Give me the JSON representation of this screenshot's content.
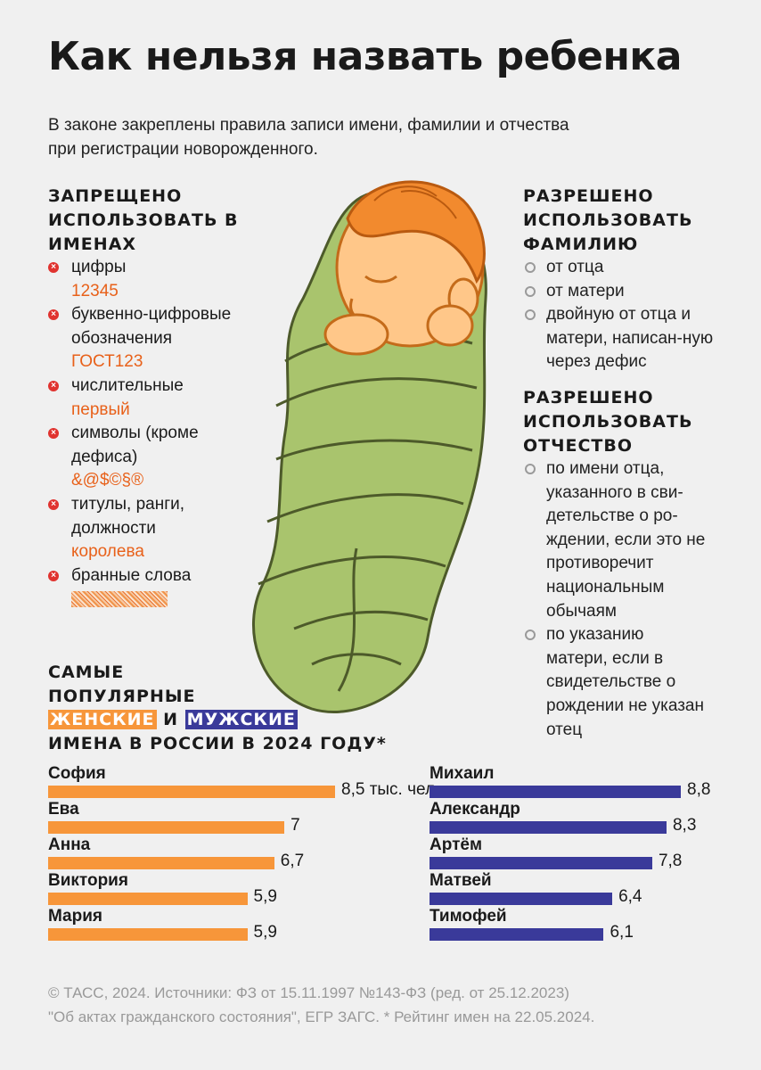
{
  "title": "Как нельзя назвать ребенка",
  "subtitle": "В законе закреплены правила записи имени, фамилии и отчества при регистрации новорожденного.",
  "forbidden": {
    "heading": "Запрещено использовать в именах",
    "items": [
      {
        "label": "цифры",
        "example": "12345"
      },
      {
        "label": "буквенно-цифровые обозначения",
        "example": "ГОСТ123"
      },
      {
        "label": "числительные",
        "example": "первый"
      },
      {
        "label": "символы (кроме дефиса)",
        "example": "&@$©§®"
      },
      {
        "label": "титулы, ранги, должности",
        "example": "королева"
      },
      {
        "label": "бранные слова",
        "example": ""
      }
    ]
  },
  "surname": {
    "heading": "Разрешено использовать фамилию",
    "items": [
      "от отца",
      "от матери",
      "двойную от отца и матери, написан-ную через дефис"
    ]
  },
  "patronymic": {
    "heading": "Разрешено использовать отчество",
    "items": [
      "по имени отца, указанного в сви-детельстве о ро-ждении, если это не противоречит национальным обычаям",
      "по указанию матери, если в свидетельстве о рождении не указан отец"
    ]
  },
  "popular": {
    "heading_line1": "Самые",
    "heading_line2": "популярные",
    "female_tag": "женские",
    "and": "и",
    "male_tag": "мужские",
    "heading_line4": "имена в России в 2024 году*"
  },
  "chart_data": [
    {
      "type": "bar",
      "series_name": "женские",
      "color": "#f7963a",
      "categories": [
        "София",
        "Ева",
        "Анна",
        "Виктория",
        "Мария"
      ],
      "values": [
        8.5,
        7,
        6.7,
        5.9,
        5.9
      ],
      "value_labels": [
        "8,5 тыс. чел.",
        "7",
        "6,7",
        "5,9",
        "5,9"
      ]
    },
    {
      "type": "bar",
      "series_name": "мужские",
      "color": "#3a3a9a",
      "categories": [
        "Михаил",
        "Александр",
        "Артём",
        "Матвей",
        "Тимофей"
      ],
      "values": [
        8.8,
        8.3,
        7.8,
        6.4,
        6.1
      ],
      "value_labels": [
        "8,8",
        "8,3",
        "7,8",
        "6,4",
        "6,1"
      ]
    }
  ],
  "footer": {
    "line1": "© ТАСС, 2024. Источники: ФЗ от 15.11.1997 №143-ФЗ (ред. от 25.12.2023)",
    "line2": "\"Об актах гражданского состояния\", ЕГР ЗАГС. * Рейтинг имен на 22.05.2024."
  },
  "colors": {
    "female": "#f7963a",
    "male": "#3a3a9a",
    "forbidden_example": "#e8611a",
    "forbidden_icon": "#e0332f",
    "blanket": "#a9c46d",
    "skin": "#ffc789",
    "hair": "#f28a2e"
  },
  "icons": {
    "forbidden": "x-circle-icon",
    "allowed": "ring-bullet-icon"
  }
}
